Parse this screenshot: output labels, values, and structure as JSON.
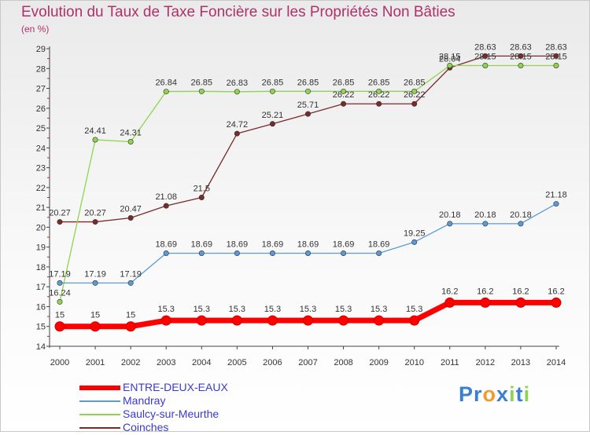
{
  "chart_data": {
    "type": "line",
    "title": "Evolution du Taux de Taxe Foncière sur les Propriétés Non Bâties",
    "ylabel": "(en %)",
    "xlabel": "",
    "x": [
      "2000",
      "2001",
      "2002",
      "2003",
      "2004",
      "2005",
      "2006",
      "2007",
      "2008",
      "2009",
      "2010",
      "2011",
      "2012",
      "2013",
      "2014"
    ],
    "ylim": [
      14,
      29
    ],
    "yticks": [
      14,
      15,
      16,
      17,
      18,
      19,
      20,
      21,
      22,
      23,
      24,
      25,
      26,
      27,
      28,
      29
    ],
    "grid": false,
    "legend_position": "bottom-left",
    "series": [
      {
        "name": "ENTRE-DEUX-EAUX",
        "color": "#ff0000",
        "values": [
          15,
          15,
          15,
          15.3,
          15.3,
          15.3,
          15.3,
          15.3,
          15.3,
          15.3,
          15.3,
          16.2,
          16.2,
          16.2,
          16.2
        ],
        "labels": [
          "15",
          "15",
          "15",
          "15.3",
          "15.3",
          "15.3",
          "15.3",
          "15.3",
          "15.3",
          "15.3",
          "15.3",
          "16.2",
          "16.2",
          "16.2",
          "16.2"
        ]
      },
      {
        "name": "Mandray",
        "color": "#5b9bd5",
        "values": [
          17.19,
          17.19,
          17.19,
          18.69,
          18.69,
          18.69,
          18.69,
          18.69,
          18.69,
          18.69,
          19.25,
          20.18,
          20.18,
          20.18,
          21.18
        ],
        "labels": [
          "17.19",
          "17.19",
          "17.19",
          "18.69",
          "18.69",
          "18.69",
          "18.69",
          "18.69",
          "18.69",
          "18.69",
          "19.25",
          "20.18",
          "20.18",
          "20.18",
          "21.18"
        ]
      },
      {
        "name": "Saulcy-sur-Meurthe",
        "color": "#8fd44e",
        "values": [
          16.24,
          24.41,
          24.31,
          26.84,
          26.85,
          26.83,
          26.85,
          26.85,
          26.85,
          26.85,
          26.85,
          28.15,
          28.15,
          28.15,
          28.15
        ],
        "labels": [
          "16.24",
          "24.41",
          "24.31",
          "26.84",
          "26.85",
          "26.83",
          "26.85",
          "26.85",
          "26.85",
          "26.85",
          "26.85",
          "28.15",
          "28.15",
          "28.15",
          "28.15"
        ]
      },
      {
        "name": "Coinches",
        "color": "#7a2a2a",
        "values": [
          20.27,
          20.27,
          20.47,
          21.08,
          21.5,
          24.72,
          25.21,
          25.71,
          26.22,
          26.22,
          26.22,
          28.04,
          28.63,
          28.63,
          28.63
        ],
        "labels": [
          "20.27",
          "20.27",
          "20.47",
          "21.08",
          "21.5",
          "24.72",
          "25.21",
          "25.71",
          "26.22",
          "26.22",
          "26.22",
          "28.04",
          "28.63",
          "28.63",
          "28.63"
        ]
      }
    ]
  },
  "brand": {
    "name": "Proxiti",
    "letters": [
      "P",
      "r",
      "o",
      "x",
      "i",
      "t",
      "i"
    ],
    "letter_colors": [
      "#3a7fd0",
      "#3a7fd0",
      "#f29a2e",
      "#3a7fd0",
      "#8fd44e",
      "#3a7fd0",
      "#8fd44e"
    ]
  }
}
